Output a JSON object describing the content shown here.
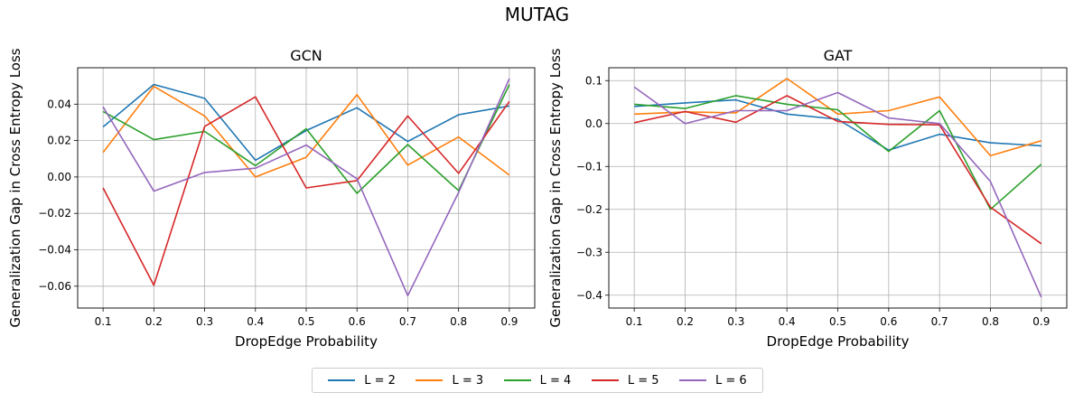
{
  "figure_title": "MUTAG",
  "legend": [
    {
      "label": "L = 2",
      "color": "#1f77b4"
    },
    {
      "label": "L = 3",
      "color": "#ff7f0e"
    },
    {
      "label": "L = 4",
      "color": "#2ca02c"
    },
    {
      "label": "L = 5",
      "color": "#d62728"
    },
    {
      "label": "L = 6",
      "color": "#9467bd"
    }
  ],
  "chart_data": [
    {
      "type": "line",
      "title": "GCN",
      "xlabel": "DropEdge Probability",
      "ylabel": "Generalization Gap in Cross Entropy Loss",
      "x": [
        0.1,
        0.2,
        0.3,
        0.4,
        0.5,
        0.6,
        0.7,
        0.8,
        0.9
      ],
      "xticks": [
        "0.1",
        "0.2",
        "0.3",
        "0.4",
        "0.5",
        "0.6",
        "0.7",
        "0.8",
        "0.9"
      ],
      "ylim": [
        -0.072,
        0.06
      ],
      "yticks": [
        -0.06,
        -0.04,
        -0.02,
        0.0,
        0.02,
        0.04
      ],
      "ytick_labels": [
        "−0.06",
        "−0.04",
        "−0.02",
        "0.00",
        "0.02",
        "0.04"
      ],
      "grid": true,
      "series": [
        {
          "name": "L = 2",
          "color": "#1f77b4",
          "values": [
            0.0275,
            0.0508,
            0.0432,
            0.0092,
            0.0255,
            0.038,
            0.0195,
            0.0342,
            0.039
          ]
        },
        {
          "name": "L = 3",
          "color": "#ff7f0e",
          "values": [
            0.0135,
            0.0498,
            0.0335,
            0.0,
            0.0108,
            0.0452,
            0.0065,
            0.022,
            0.001
          ]
        },
        {
          "name": "L = 4",
          "color": "#2ca02c",
          "values": [
            0.036,
            0.0205,
            0.025,
            0.0062,
            0.0265,
            -0.009,
            0.0178,
            -0.0075,
            0.0508
          ]
        },
        {
          "name": "L = 5",
          "color": "#d62728",
          "values": [
            -0.006,
            -0.0595,
            0.0278,
            0.044,
            -0.006,
            -0.002,
            0.0335,
            0.002,
            0.0415
          ]
        },
        {
          "name": "L = 6",
          "color": "#9467bd",
          "values": [
            0.0385,
            -0.0078,
            0.0025,
            0.0048,
            0.0175,
            -0.001,
            -0.0652,
            -0.0085,
            0.054
          ]
        }
      ]
    },
    {
      "type": "line",
      "title": "GAT",
      "xlabel": "DropEdge Probability",
      "ylabel": "Generalization Gap in Cross Entropy Loss",
      "x": [
        0.1,
        0.2,
        0.3,
        0.4,
        0.5,
        0.6,
        0.7,
        0.8,
        0.9
      ],
      "xticks": [
        "0.1",
        "0.2",
        "0.3",
        "0.4",
        "0.5",
        "0.6",
        "0.7",
        "0.8",
        "0.9"
      ],
      "ylim": [
        -0.43,
        0.13
      ],
      "yticks": [
        -0.4,
        -0.3,
        -0.2,
        -0.1,
        0.0,
        0.1
      ],
      "ytick_labels": [
        "−0.4",
        "−0.3",
        "−0.2",
        "−0.1",
        "0.0",
        "0.1"
      ],
      "grid": true,
      "series": [
        {
          "name": "L = 2",
          "color": "#1f77b4",
          "values": [
            0.04,
            0.048,
            0.055,
            0.022,
            0.01,
            -0.062,
            -0.025,
            -0.045,
            -0.052
          ]
        },
        {
          "name": "L = 3",
          "color": "#ff7f0e",
          "values": [
            0.022,
            0.027,
            0.025,
            0.105,
            0.022,
            0.03,
            0.062,
            -0.075,
            -0.04
          ]
        },
        {
          "name": "L = 4",
          "color": "#2ca02c",
          "values": [
            0.045,
            0.035,
            0.065,
            0.045,
            0.032,
            -0.065,
            0.03,
            -0.2,
            -0.095
          ]
        },
        {
          "name": "L = 5",
          "color": "#d62728",
          "values": [
            0.002,
            0.028,
            0.003,
            0.065,
            0.005,
            -0.002,
            -0.003,
            -0.195,
            -0.28
          ]
        },
        {
          "name": "L = 6",
          "color": "#9467bd",
          "values": [
            0.085,
            0.0,
            0.03,
            0.03,
            0.072,
            0.013,
            0.0,
            -0.135,
            -0.405
          ]
        }
      ]
    }
  ]
}
